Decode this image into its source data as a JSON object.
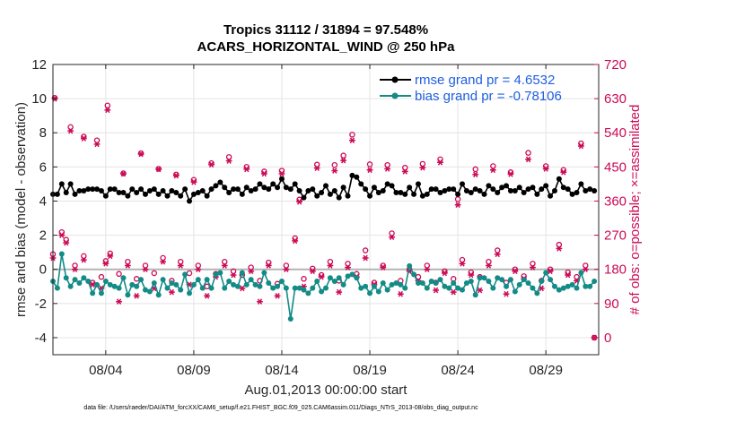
{
  "colors": {
    "rmse": "#000000",
    "bias": "#138b87",
    "obs": "#cc0a55",
    "legend_text": "#1f5fe0",
    "zero_line": "#b4b4b4"
  },
  "chart_data": {
    "type": "line",
    "title_line1": "Tropics 31112 / 31894 = 97.548%",
    "title_line2": "ACARS_HORIZONTAL_WIND @ 250 hPa",
    "xlabel": "Aug.01,2013 00:00:00 start",
    "ylabel_left": "rmse and bias (model - observation)",
    "ylabel_right": "# of obs: o=possible; ×=assimilated",
    "xlim": [
      1.0,
      32.0
    ],
    "ylim_left": [
      -5,
      12
    ],
    "ylim_right": [
      -45,
      720
    ],
    "x_ticks": [
      4,
      9,
      14,
      19,
      24,
      29
    ],
    "x_tick_labels": [
      "08/04",
      "08/09",
      "08/14",
      "08/19",
      "08/24",
      "08/29"
    ],
    "y_ticks_left": [
      -4,
      -2,
      0,
      2,
      4,
      6,
      8,
      10,
      12
    ],
    "y_ticks_right": [
      0,
      90,
      180,
      270,
      360,
      450,
      540,
      630,
      720
    ],
    "legend": {
      "position": "top-right",
      "rmse_label": "rmse grand pr = 4.6532",
      "bias_label": "bias grand pr = -0.78106"
    },
    "footer": "data file: /Users/raeder/DAI/ATM_forcXX/CAM6_setup/f.e21.FHIST_BGC.f09_025.CAM6assim.011/Diags_NTrS_2013-08/obs_diag_output.nc",
    "x": [
      1.0,
      1.25,
      1.5,
      1.75,
      2.0,
      2.25,
      2.5,
      2.75,
      3.0,
      3.25,
      3.5,
      3.75,
      4.0,
      4.25,
      4.5,
      4.75,
      5.0,
      5.25,
      5.5,
      5.75,
      6.0,
      6.25,
      6.5,
      6.75,
      7.0,
      7.25,
      7.5,
      7.75,
      8.0,
      8.25,
      8.5,
      8.75,
      9.0,
      9.25,
      9.5,
      9.75,
      10.0,
      10.25,
      10.5,
      10.75,
      11.0,
      11.25,
      11.5,
      11.75,
      12.0,
      12.25,
      12.5,
      12.75,
      13.0,
      13.25,
      13.5,
      13.75,
      14.0,
      14.25,
      14.5,
      14.75,
      15.0,
      15.25,
      15.5,
      15.75,
      16.0,
      16.25,
      16.5,
      16.75,
      17.0,
      17.25,
      17.5,
      17.75,
      18.0,
      18.25,
      18.5,
      18.75,
      19.0,
      19.25,
      19.5,
      19.75,
      20.0,
      20.25,
      20.5,
      20.75,
      21.0,
      21.25,
      21.5,
      21.75,
      22.0,
      22.25,
      22.5,
      22.75,
      23.0,
      23.25,
      23.5,
      23.75,
      24.0,
      24.25,
      24.5,
      24.75,
      25.0,
      25.25,
      25.5,
      25.75,
      26.0,
      26.25,
      26.5,
      26.75,
      27.0,
      27.25,
      27.5,
      27.75,
      28.0,
      28.25,
      28.5,
      28.75,
      29.0,
      29.25,
      29.5,
      29.75,
      30.0,
      30.25,
      30.5,
      30.75,
      31.0,
      31.25,
      31.5,
      31.75
    ],
    "rmse": [
      4.4,
      4.4,
      5.0,
      4.5,
      5.0,
      4.4,
      4.6,
      4.6,
      4.7,
      4.7,
      4.7,
      4.6,
      4.3,
      4.7,
      4.7,
      4.5,
      4.5,
      4.3,
      4.7,
      4.5,
      4.7,
      4.4,
      4.6,
      4.7,
      4.4,
      4.6,
      4.3,
      4.6,
      4.5,
      4.3,
      4.7,
      4.0,
      4.4,
      4.5,
      4.6,
      4.3,
      4.7,
      4.9,
      5.1,
      4.8,
      4.5,
      4.7,
      4.7,
      4.4,
      4.8,
      4.6,
      4.7,
      5.0,
      4.8,
      4.7,
      5.0,
      4.8,
      5.3,
      4.8,
      4.7,
      5.0,
      4.6,
      4.2,
      4.6,
      4.7,
      4.3,
      4.5,
      4.9,
      4.4,
      4.6,
      4.2,
      4.8,
      4.3,
      5.5,
      5.4,
      5.0,
      4.7,
      4.3,
      4.8,
      4.5,
      4.6,
      5.0,
      4.9,
      4.5,
      4.5,
      4.4,
      4.8,
      4.4,
      5.0,
      4.3,
      4.4,
      4.7,
      4.7,
      4.5,
      4.6,
      4.7,
      4.7,
      4.4,
      5.0,
      4.6,
      4.5,
      4.7,
      4.6,
      4.4,
      4.9,
      4.7,
      4.5,
      4.8,
      4.9,
      4.6,
      4.6,
      4.8,
      4.5,
      4.7,
      4.8,
      4.4,
      4.7,
      4.9,
      4.3,
      4.6,
      5.3,
      4.8,
      4.7,
      4.4,
      4.5,
      5.0,
      4.6,
      4.7,
      4.6,
      4.7,
      4.6,
      4.7,
      4.6
    ],
    "bias": [
      -0.7,
      -1.1,
      0.9,
      -0.5,
      -1.0,
      -0.6,
      -0.8,
      -0.5,
      -0.7,
      -1.4,
      -0.9,
      -1.4,
      -0.7,
      -0.9,
      -1.0,
      -1.1,
      -0.5,
      -1.5,
      -0.9,
      -1.0,
      -0.6,
      -1.2,
      -1.3,
      -0.8,
      -1.5,
      -0.6,
      -1.1,
      -0.8,
      -0.9,
      -1.2,
      -0.3,
      -1.4,
      -0.9,
      -0.6,
      -1.1,
      -0.6,
      -1.1,
      -0.3,
      -0.2,
      -1.1,
      -0.7,
      -0.9,
      -1.0,
      -0.2,
      -0.9,
      -0.6,
      -0.9,
      -1.0,
      -0.2,
      -0.8,
      -1.1,
      -1.0,
      -0.7,
      -1.1,
      -2.9,
      -1.1,
      -1.1,
      -1.2,
      -1.4,
      -1.1,
      -0.7,
      -1.3,
      -1.1,
      -0.5,
      -0.7,
      -0.5,
      -0.9,
      -0.4,
      -0.3,
      -0.5,
      -1.1,
      -1.0,
      -1.4,
      -1.0,
      -1.3,
      -0.8,
      -1.2,
      -0.9,
      -0.8,
      -0.9,
      -1.1,
      0.2,
      -0.3,
      -0.8,
      -0.8,
      -1.1,
      -0.7,
      -0.8,
      -0.6,
      -1.0,
      -1.1,
      -0.8,
      -1.1,
      -1.2,
      -0.8,
      -0.7,
      -1.5,
      -0.5,
      -0.5,
      -0.7,
      -1.1,
      -0.5,
      -0.6,
      -1.0,
      -0.6,
      -1.3,
      -0.9,
      -0.6,
      -0.8,
      -1.1,
      -1.4,
      -0.7,
      -0.2,
      -0.6,
      -1.0,
      -1.2,
      -1.1,
      -1.0,
      -0.9,
      -1.1,
      -0.2,
      -1.0,
      -1.0,
      -0.7,
      -1.3,
      -1.0,
      -1.4,
      -1.1
    ],
    "obs_upper_possible_x": [
      1.1,
      2.0,
      2.75,
      3.5,
      4.1,
      5.0,
      6.0,
      7.0,
      8.0,
      9.0,
      10.0,
      11.0,
      12.0,
      13.0,
      14.0,
      15.0,
      16.0,
      17.0,
      17.5,
      18.0,
      19.0,
      20.0,
      21.0,
      22.0,
      23.0,
      24.0,
      25.0,
      26.0,
      27.0,
      28.0,
      29.0,
      30.0,
      31.0
    ],
    "obs_upper_possible_y": [
      632,
      555,
      530,
      520,
      612,
      433,
      486,
      445,
      430,
      416,
      460,
      476,
      450,
      438,
      440,
      364,
      456,
      455,
      480,
      535,
      457,
      455,
      448,
      458,
      470,
      365,
      444,
      452,
      436,
      487,
      452,
      442,
      512
    ],
    "obs_upper_assim_x": [
      1.1,
      2.0,
      2.75,
      3.5,
      4.1,
      5.0,
      6.0,
      7.0,
      8.0,
      9.0,
      10.0,
      11.0,
      12.0,
      13.0,
      14.0,
      15.0,
      16.0,
      17.0,
      17.5,
      18.0,
      19.0,
      20.0,
      21.0,
      22.0,
      23.0,
      24.0,
      25.0,
      26.0,
      27.0,
      28.0,
      29.0,
      30.0,
      31.0
    ],
    "obs_upper_assim_y": [
      630,
      545,
      525,
      510,
      600,
      432,
      484,
      444,
      427,
      410,
      456,
      466,
      444,
      432,
      432,
      358,
      447,
      440,
      467,
      520,
      442,
      445,
      438,
      448,
      462,
      350,
      430,
      442,
      431,
      470,
      445,
      436,
      505
    ],
    "obs_lower_possible_x": [
      1.0,
      1.5,
      1.75,
      2.25,
      2.75,
      3.25,
      3.75,
      4.0,
      4.25,
      4.75,
      5.25,
      5.75,
      6.25,
      6.75,
      7.25,
      7.75,
      8.25,
      8.75,
      9.25,
      9.75,
      10.25,
      10.75,
      11.25,
      11.75,
      12.25,
      12.75,
      13.25,
      13.75,
      14.25,
      14.75,
      15.25,
      15.75,
      16.25,
      16.75,
      17.25,
      17.75,
      18.25,
      18.75,
      19.25,
      19.75,
      20.25,
      20.75,
      21.25,
      21.75,
      22.25,
      22.75,
      23.25,
      23.75,
      24.25,
      24.75,
      25.25,
      25.75,
      26.25,
      26.75,
      27.25,
      27.75,
      28.25,
      28.75,
      29.25,
      29.75,
      30.25,
      30.75,
      31.25,
      31.75
    ],
    "obs_lower_possible_y": [
      220,
      278,
      258,
      190,
      215,
      145,
      160,
      202,
      222,
      168,
      200,
      155,
      190,
      170,
      210,
      150,
      200,
      170,
      190,
      135,
      168,
      200,
      175,
      165,
      185,
      150,
      198,
      142,
      190,
      262,
      155,
      182,
      165,
      200,
      150,
      195,
      168,
      230,
      145,
      190,
      275,
      150,
      180,
      160,
      190,
      145,
      175,
      155,
      205,
      172,
      160,
      200,
      230,
      145,
      180,
      162,
      195,
      150,
      180,
      245,
      172,
      160,
      190,
      0
    ],
    "obs_lower_assim_x": [
      1.0,
      1.5,
      1.75,
      2.25,
      2.75,
      3.25,
      3.75,
      4.0,
      4.25,
      4.75,
      5.25,
      5.75,
      6.25,
      6.75,
      7.25,
      7.75,
      8.25,
      8.75,
      9.25,
      9.75,
      10.25,
      10.75,
      11.25,
      11.75,
      12.25,
      12.75,
      13.25,
      13.75,
      14.25,
      14.75,
      15.25,
      15.75,
      16.25,
      16.75,
      17.25,
      17.75,
      18.25,
      18.75,
      19.25,
      19.75,
      20.25,
      20.75,
      21.25,
      21.75,
      22.25,
      22.75,
      23.25,
      23.75,
      24.25,
      24.75,
      25.25,
      25.75,
      26.25,
      26.75,
      27.25,
      27.75,
      28.25,
      28.75,
      29.25,
      29.75,
      30.25,
      30.75,
      31.25,
      31.75
    ],
    "obs_lower_assim_y": [
      210,
      270,
      250,
      180,
      205,
      140,
      130,
      195,
      215,
      95,
      190,
      110,
      180,
      130,
      200,
      120,
      190,
      140,
      180,
      110,
      160,
      190,
      165,
      130,
      175,
      95,
      190,
      110,
      180,
      255,
      135,
      175,
      160,
      190,
      120,
      185,
      160,
      210,
      140,
      185,
      265,
      115,
      175,
      150,
      180,
      125,
      170,
      120,
      195,
      165,
      125,
      190,
      220,
      115,
      175,
      155,
      185,
      130,
      175,
      235,
      165,
      150,
      180,
      0
    ]
  }
}
